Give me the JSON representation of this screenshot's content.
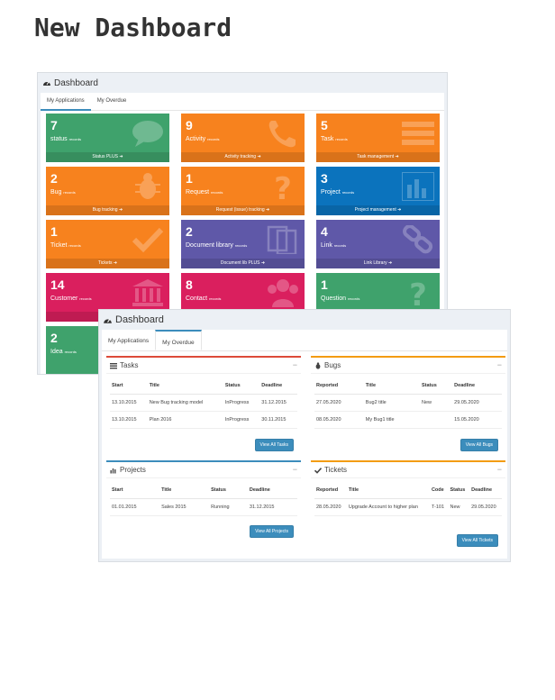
{
  "title": "New Dashboard",
  "back": {
    "header": "Dashboard",
    "tabs": [
      "My Applications",
      "My Overdue"
    ],
    "tiles": [
      {
        "count": "7",
        "label": "status",
        "unit": "records",
        "footer": "Status PLUS",
        "color": "#3fa26c",
        "icon": "speech-bubble-icon"
      },
      {
        "count": "9",
        "label": "Activity",
        "unit": "records",
        "footer": "Activity tracking",
        "color": "#f7821e",
        "icon": "phone-icon"
      },
      {
        "count": "5",
        "label": "Task",
        "unit": "records",
        "footer": "Task management",
        "color": "#f7821e",
        "icon": "list-icon"
      },
      {
        "count": "2",
        "label": "Bug",
        "unit": "records",
        "footer": "Bug tracking",
        "color": "#f7821e",
        "icon": "bug-icon"
      },
      {
        "count": "1",
        "label": "Request",
        "unit": "records",
        "footer": "Request (issue) tracking",
        "color": "#f7821e",
        "icon": "question-icon"
      },
      {
        "count": "3",
        "label": "Project",
        "unit": "records",
        "footer": "Project management",
        "color": "#0b73bd",
        "icon": "bar-chart-icon"
      },
      {
        "count": "1",
        "label": "Ticket",
        "unit": "records",
        "footer": "Tickets",
        "color": "#f7821e",
        "icon": "check-icon"
      },
      {
        "count": "2",
        "label": "Document library",
        "unit": "records",
        "footer": "Document lib PLUS",
        "color": "#5f58a8",
        "icon": "documents-icon"
      },
      {
        "count": "4",
        "label": "Link",
        "unit": "records",
        "footer": "Link Library",
        "color": "#5f58a8",
        "icon": "link-icon"
      },
      {
        "count": "14",
        "label": "Customer",
        "unit": "records",
        "footer": "C",
        "color": "#da1f5e",
        "icon": "bank-icon"
      },
      {
        "count": "8",
        "label": "Contact",
        "unit": "records",
        "footer": "",
        "color": "#da1f5e",
        "icon": "users-icon"
      },
      {
        "count": "1",
        "label": "Question",
        "unit": "records",
        "footer": "",
        "color": "#3fa26c",
        "icon": "question-icon"
      },
      {
        "count": "2",
        "label": "Idea",
        "unit": "records",
        "footer": "",
        "color": "#3fa26c",
        "icon": ""
      }
    ]
  },
  "front": {
    "header": "Dashboard",
    "tabs": [
      "My Applications",
      "My Overdue"
    ],
    "tasks": {
      "title": "Tasks",
      "accent": "#dd4b39",
      "columns": [
        "Start",
        "Title",
        "Status",
        "Deadline"
      ],
      "rows": [
        [
          "13.10.2015",
          "New Bug tracking model",
          "InProgress",
          "31.12.2015"
        ],
        [
          "13.10.2015",
          "Plan 2016",
          "InProgress",
          "30.11.2015"
        ]
      ],
      "button": "View All Tasks"
    },
    "bugs": {
      "title": "Bugs",
      "accent": "#f39c12",
      "columns": [
        "Reported",
        "Title",
        "Status",
        "Deadline"
      ],
      "rows": [
        [
          "27.05.2020",
          "Bug2 title",
          "New",
          "29.05.2020"
        ],
        [
          "08.05.2020",
          "My Bug1 title",
          "",
          "15.05.2020"
        ]
      ],
      "button": "View All Bugs"
    },
    "projects": {
      "title": "Projects",
      "accent": "#3c8dbc",
      "columns": [
        "Start",
        "Title",
        "Status",
        "Deadline"
      ],
      "rows": [
        [
          "01.01.2015",
          "Sales 2015",
          "Running",
          "31.12.2015"
        ]
      ],
      "button": "View All Projects"
    },
    "tickets": {
      "title": "Tickets",
      "accent": "#f39c12",
      "columns": [
        "Reported",
        "Title",
        "Code",
        "Status",
        "Deadline"
      ],
      "rows": [
        [
          "28.05.2020",
          "Upgrade Account to higher plan",
          "T-101",
          "New",
          "29.05.2020"
        ]
      ],
      "button": "View All Tickets"
    }
  }
}
